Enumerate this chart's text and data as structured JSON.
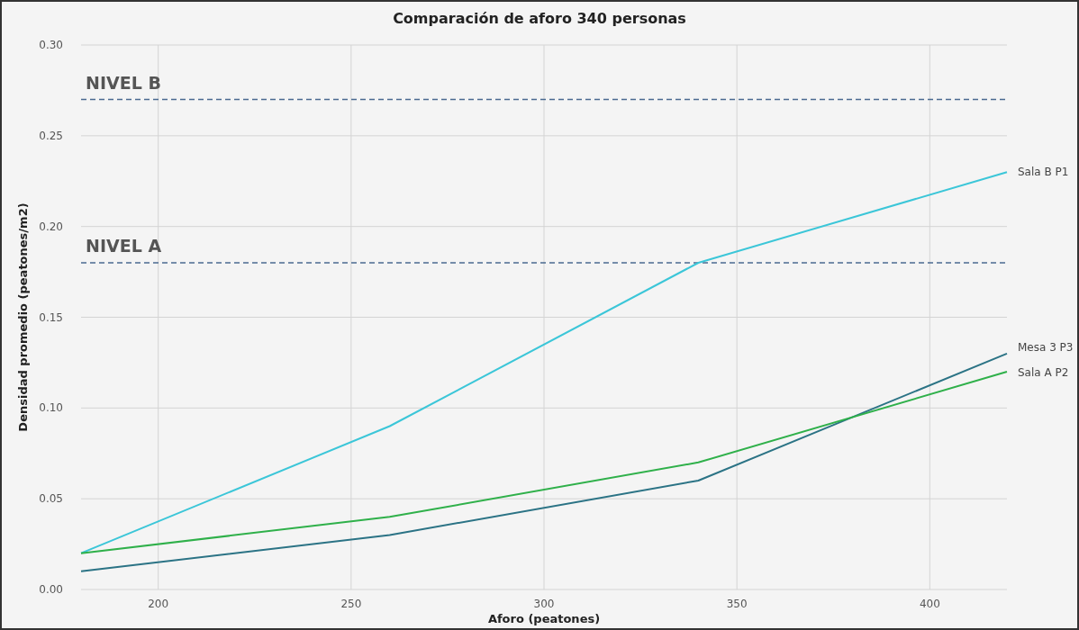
{
  "chart_data": {
    "type": "line",
    "title": "Comparación de aforo 340 personas",
    "xlabel": "Aforo (peatones)",
    "ylabel": "Densidad promedio (peatones/m2)",
    "x": [
      180,
      260,
      340,
      420
    ],
    "series": [
      {
        "name": "Sala B P1",
        "color": "#3bc6d8",
        "values": [
          0.02,
          0.09,
          0.18,
          0.23
        ]
      },
      {
        "name": "Mesa 3 P3",
        "color": "#2b7385",
        "values": [
          0.01,
          0.03,
          0.06,
          0.13
        ]
      },
      {
        "name": "Sala A P2",
        "color": "#2fb04a",
        "values": [
          0.02,
          0.04,
          0.07,
          0.12
        ]
      }
    ],
    "xlim": [
      180,
      420
    ],
    "xticks": [
      200,
      250,
      300,
      350,
      400
    ],
    "ylim": [
      0,
      0.3
    ],
    "yticks": [
      {
        "value": 0,
        "label": "0.00"
      },
      {
        "value": 0.05,
        "label": "0.05"
      },
      {
        "value": 0.1,
        "label": "0.10"
      },
      {
        "value": 0.15,
        "label": "0.15"
      },
      {
        "value": 0.2,
        "label": "0.20"
      },
      {
        "value": 0.25,
        "label": "0.25"
      },
      {
        "value": 0.3,
        "label": "0.30"
      }
    ],
    "ref_lines": [
      {
        "axis": "y",
        "value": 0.27,
        "label": "NIVEL B",
        "color": "#4a6a90",
        "line_style": "dashed"
      },
      {
        "axis": "y",
        "value": 0.18,
        "label": "NIVEL A",
        "color": "#4a6a90",
        "line_style": "dashed"
      }
    ],
    "grid": true,
    "legend": false,
    "marker": "none",
    "line_style": "solid"
  }
}
